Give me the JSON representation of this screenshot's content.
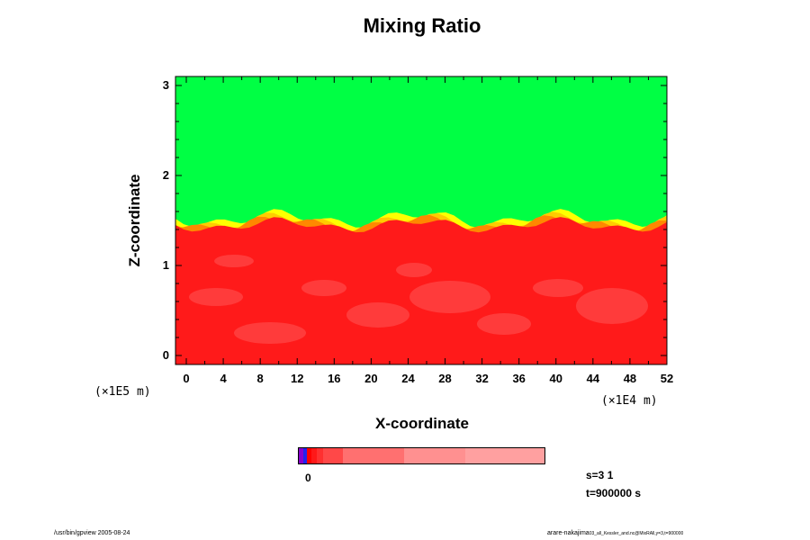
{
  "chart_data": {
    "type": "heatmap",
    "title": "Mixing Ratio",
    "xlabel": "X-coordinate",
    "ylabel": "Z-coordinate",
    "x_scale_note": "(×1E4 m)",
    "y_scale_note": "(×1E5 m)",
    "xlim": [
      0,
      52
    ],
    "ylim": [
      0,
      3
    ],
    "x_ticks": [
      "0",
      "4",
      "8",
      "12",
      "16",
      "20",
      "24",
      "28",
      "32",
      "36",
      "40",
      "44",
      "48",
      "52"
    ],
    "y_ticks": [
      "0",
      "1",
      "2",
      "3"
    ],
    "colorbar": {
      "tick_label": "0",
      "colors": [
        "#8800cc",
        "#2222ee",
        "#ff0000",
        "#ff1818",
        "#ff3030",
        "#ff4848",
        "#ff7070",
        "#ff9090",
        "#ffa0a0"
      ]
    },
    "fields": {
      "upper_color": "#00ff44",
      "lower_color": "#ff1a1a",
      "interface_z": 1.45,
      "interface_colors": [
        "#ffff00",
        "#ffcc00",
        "#ff8800"
      ]
    },
    "info_line1": "s=3 1",
    "info_line2": "t=900000 s"
  },
  "footer": {
    "left": "/usr/bin/gpview 2005-08-24",
    "right_main": "arare-nakajima",
    "right_small": "03_all_Kessler_and.nc@MixRAll,y=3,t=900000"
  }
}
